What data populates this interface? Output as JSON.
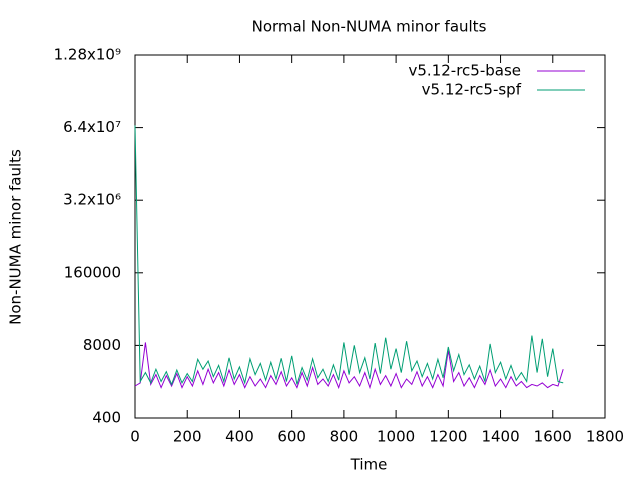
{
  "chart_data": {
    "type": "line",
    "title": "Normal Non-NUMA minor faults",
    "x_label": "Time",
    "y_label": "Non-NUMA minor faults",
    "xlim": [
      0,
      1800
    ],
    "xticks": [
      0,
      200,
      400,
      600,
      800,
      1000,
      1200,
      1400,
      1600,
      1800
    ],
    "ylim": [
      400,
      1280000000
    ],
    "log_y": true,
    "yticks": [
      400,
      8000,
      160000,
      {
        "value": 3200000,
        "label": "3.2x10⁶"
      },
      {
        "value": 64000000,
        "label": "6.4x10⁷"
      },
      {
        "value": 1280000000,
        "label": "1.28x10⁹"
      }
    ],
    "legend": "top-right",
    "x": [
      0,
      20,
      40,
      60,
      80,
      100,
      120,
      140,
      160,
      180,
      200,
      220,
      240,
      260,
      280,
      300,
      320,
      340,
      360,
      380,
      400,
      420,
      440,
      460,
      480,
      500,
      520,
      540,
      560,
      580,
      600,
      620,
      640,
      660,
      680,
      700,
      720,
      740,
      760,
      780,
      800,
      820,
      840,
      860,
      880,
      900,
      920,
      940,
      960,
      980,
      1000,
      1020,
      1040,
      1060,
      1080,
      1100,
      1120,
      1140,
      1160,
      1180,
      1200,
      1220,
      1240,
      1260,
      1280,
      1300,
      1320,
      1340,
      1360,
      1380,
      1400,
      1420,
      1440,
      1460,
      1480,
      1500,
      1520,
      1540,
      1560,
      1580,
      1600,
      1620,
      1640
    ],
    "series": [
      {
        "name": "v5.12-rc5-base",
        "color": "#9400d3",
        "values": [
          1500,
          1700,
          9000,
          1600,
          2400,
          1400,
          2300,
          1500,
          2500,
          1400,
          2200,
          1500,
          2800,
          1600,
          3000,
          1700,
          2600,
          1500,
          2900,
          1600,
          2400,
          1400,
          2200,
          1500,
          2000,
          1400,
          2300,
          1600,
          2700,
          1500,
          2100,
          1400,
          2600,
          1500,
          3200,
          1600,
          2000,
          1500,
          2400,
          1400,
          2800,
          1700,
          2200,
          1500,
          2600,
          1400,
          3000,
          1600,
          2300,
          1500,
          2500,
          1400,
          2000,
          1600,
          2700,
          1500,
          2200,
          1400,
          2400,
          1500,
          6500,
          1800,
          2600,
          1500,
          2100,
          1400,
          2300,
          1600,
          2900,
          1500,
          2000,
          1400,
          2200,
          1500,
          1800,
          1400,
          1600,
          1500,
          1700,
          1400,
          1600,
          1500,
          3000
        ]
      },
      {
        "name": "v5.12-rc5-spf",
        "color": "#009e73",
        "values": [
          70000000,
          1800,
          2600,
          1700,
          3000,
          1800,
          2700,
          1600,
          2900,
          1700,
          2500,
          1800,
          4500,
          3000,
          4200,
          2200,
          3500,
          1800,
          4800,
          2000,
          3300,
          1700,
          4600,
          2400,
          3800,
          1900,
          4000,
          2000,
          4700,
          1800,
          5200,
          1600,
          3200,
          1900,
          4600,
          2100,
          3000,
          1800,
          3600,
          1900,
          9000,
          2400,
          8000,
          2600,
          4800,
          2000,
          8800,
          2500,
          11000,
          3000,
          7000,
          2600,
          9500,
          2800,
          4200,
          2200,
          3800,
          2000,
          4500,
          2100,
          7500,
          2800,
          5500,
          2400,
          3600,
          2000,
          3400,
          1800,
          8500,
          2600,
          4000,
          2000,
          3500,
          1900,
          2600,
          1800,
          12000,
          2600,
          10500,
          2200,
          7000,
          1800,
          1700
        ]
      }
    ]
  }
}
